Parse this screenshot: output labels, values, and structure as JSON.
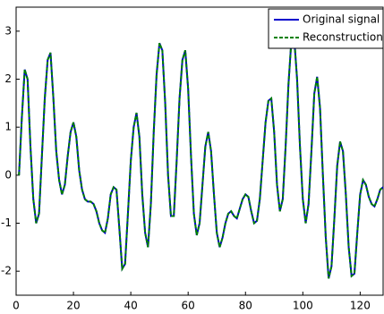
{
  "chart_data": {
    "type": "line",
    "x": [
      1,
      2,
      3,
      4,
      5,
      6,
      7,
      8,
      9,
      10,
      11,
      12,
      13,
      14,
      15,
      16,
      17,
      18,
      19,
      20,
      21,
      22,
      23,
      24,
      25,
      26,
      27,
      28,
      29,
      30,
      31,
      32,
      33,
      34,
      35,
      36,
      37,
      38,
      39,
      40,
      41,
      42,
      43,
      44,
      45,
      46,
      47,
      48,
      49,
      50,
      51,
      52,
      53,
      54,
      55,
      56,
      57,
      58,
      59,
      60,
      61,
      62,
      63,
      64,
      65,
      66,
      67,
      68,
      69,
      70,
      71,
      72,
      73,
      74,
      75,
      76,
      77,
      78,
      79,
      80,
      81,
      82,
      83,
      84,
      85,
      86,
      87,
      88,
      89,
      90,
      91,
      92,
      93,
      94,
      95,
      96,
      97,
      98,
      99,
      100,
      101,
      102,
      103,
      104,
      105,
      106,
      107,
      108,
      109,
      110,
      111,
      112,
      113,
      114,
      115,
      116,
      117,
      118,
      119,
      120,
      121,
      122,
      123,
      124,
      125,
      126,
      127,
      128
    ],
    "series": [
      {
        "name": "Original signal",
        "color": "#0000cc",
        "dashed": false,
        "values": [
          0,
          1.2,
          2.2,
          2.0,
          0.6,
          -0.5,
          -1.0,
          -0.8,
          0.4,
          1.6,
          2.4,
          2.55,
          1.6,
          0.5,
          -0.1,
          -0.4,
          -0.2,
          0.4,
          0.9,
          1.1,
          0.8,
          0.1,
          -0.3,
          -0.5,
          -0.55,
          -0.55,
          -0.6,
          -0.75,
          -1.0,
          -1.15,
          -1.2,
          -0.9,
          -0.4,
          -0.25,
          -0.3,
          -1.1,
          -1.95,
          -1.85,
          -0.8,
          0.3,
          1.0,
          1.3,
          0.8,
          -0.4,
          -1.2,
          -1.5,
          -0.6,
          0.9,
          2.1,
          2.75,
          2.6,
          1.5,
          0.0,
          -0.85,
          -0.85,
          0.3,
          1.6,
          2.4,
          2.6,
          1.8,
          0.4,
          -0.8,
          -1.25,
          -1.0,
          -0.2,
          0.6,
          0.9,
          0.5,
          -0.4,
          -1.2,
          -1.5,
          -1.3,
          -1.0,
          -0.8,
          -0.75,
          -0.85,
          -0.9,
          -0.7,
          -0.5,
          -0.4,
          -0.45,
          -0.75,
          -1.0,
          -0.95,
          -0.5,
          0.3,
          1.1,
          1.55,
          1.6,
          0.9,
          -0.2,
          -0.75,
          -0.5,
          0.6,
          1.9,
          2.8,
          2.85,
          2.0,
          0.6,
          -0.5,
          -1.0,
          -0.6,
          0.5,
          1.7,
          2.05,
          1.4,
          0.0,
          -1.3,
          -2.15,
          -1.9,
          -0.9,
          0.2,
          0.7,
          0.5,
          -0.4,
          -1.5,
          -2.1,
          -2.05,
          -1.2,
          -0.4,
          -0.1,
          -0.2,
          -0.45,
          -0.6,
          -0.65,
          -0.5,
          -0.3,
          -0.25
        ]
      },
      {
        "name": "Reconstruction",
        "color": "#008000",
        "dashed": true,
        "values": [
          0,
          1.2,
          2.2,
          2.0,
          0.6,
          -0.5,
          -1.0,
          -0.8,
          0.4,
          1.6,
          2.4,
          2.55,
          1.6,
          0.5,
          -0.1,
          -0.4,
          -0.2,
          0.4,
          0.9,
          1.1,
          0.8,
          0.1,
          -0.3,
          -0.5,
          -0.55,
          -0.55,
          -0.6,
          -0.75,
          -1.0,
          -1.15,
          -1.2,
          -0.9,
          -0.4,
          -0.25,
          -0.3,
          -1.1,
          -1.95,
          -1.85,
          -0.8,
          0.3,
          1.0,
          1.3,
          0.8,
          -0.4,
          -1.2,
          -1.5,
          -0.6,
          0.9,
          2.1,
          2.75,
          2.6,
          1.5,
          0.0,
          -0.85,
          -0.85,
          0.3,
          1.6,
          2.4,
          2.6,
          1.8,
          0.4,
          -0.8,
          -1.25,
          -1.0,
          -0.2,
          0.6,
          0.9,
          0.5,
          -0.4,
          -1.2,
          -1.5,
          -1.3,
          -1.0,
          -0.8,
          -0.75,
          -0.85,
          -0.9,
          -0.7,
          -0.5,
          -0.4,
          -0.45,
          -0.75,
          -1.0,
          -0.95,
          -0.5,
          0.3,
          1.1,
          1.55,
          1.6,
          0.9,
          -0.2,
          -0.75,
          -0.5,
          0.6,
          1.9,
          2.8,
          2.85,
          2.0,
          0.6,
          -0.5,
          -1.0,
          -0.6,
          0.5,
          1.7,
          2.05,
          1.4,
          0.0,
          -1.3,
          -2.15,
          -1.9,
          -0.9,
          0.2,
          0.7,
          0.5,
          -0.4,
          -1.5,
          -2.1,
          -2.05,
          -1.2,
          -0.4,
          -0.1,
          -0.2,
          -0.45,
          -0.6,
          -0.65,
          -0.5,
          -0.3,
          -0.25
        ]
      }
    ],
    "xlim": [
      0,
      128
    ],
    "xticks": [
      0,
      20,
      40,
      60,
      80,
      100,
      120
    ],
    "ylim": [
      -2.5,
      3.5
    ],
    "yticks": [
      -2,
      -1,
      0,
      1,
      2,
      3
    ],
    "legend": "top-right"
  }
}
